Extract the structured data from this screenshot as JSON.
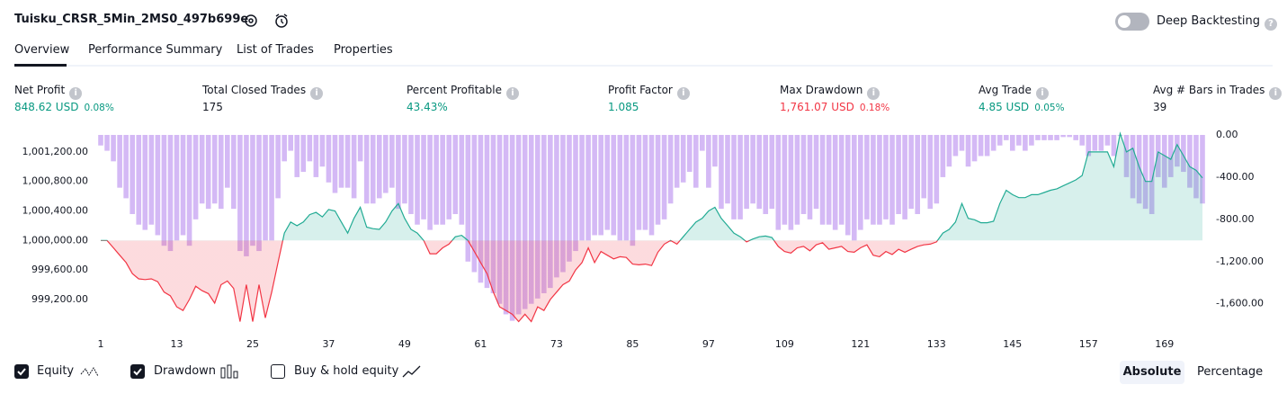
{
  "header": {
    "title": "Tuisku_CRSR_5Min_2MS0_497b699e",
    "toggle": "Deep Backtesting"
  },
  "tabs": [
    "Overview",
    "Performance Summary",
    "List of Trades",
    "Properties"
  ],
  "metrics": [
    {
      "label": "Net Profit",
      "value": "848.62 USD",
      "percent": "0.08%",
      "tone": "pos"
    },
    {
      "label": "Total Closed Trades",
      "value": "175",
      "tone": "neutral"
    },
    {
      "label": "Percent Profitable",
      "value": "43.43%",
      "tone": "pos"
    },
    {
      "label": "Profit Factor",
      "value": "1.085",
      "tone": "pos"
    },
    {
      "label": "Max Drawdown",
      "value": "1,761.07 USD",
      "percent": "0.18%",
      "tone": "neg"
    },
    {
      "label": "Avg Trade",
      "value": "4.85 USD",
      "percent": "0.05%",
      "tone": "pos"
    },
    {
      "label": "Avg # Bars in Trades",
      "value": "39",
      "tone": "neutral"
    }
  ],
  "chart_data": {
    "type": "line",
    "x": [
      1,
      2,
      3,
      4,
      5,
      6,
      7,
      8,
      9,
      10,
      11,
      12,
      13,
      14,
      15,
      16,
      17,
      18,
      19,
      20,
      21,
      22,
      23,
      24,
      25,
      26,
      27,
      28,
      29,
      30,
      31,
      32,
      33,
      34,
      35,
      36,
      37,
      38,
      39,
      40,
      41,
      42,
      43,
      44,
      45,
      46,
      47,
      48,
      49,
      50,
      51,
      52,
      53,
      54,
      55,
      56,
      57,
      58,
      59,
      60,
      61,
      62,
      63,
      64,
      65,
      66,
      67,
      68,
      69,
      70,
      71,
      72,
      73,
      74,
      75,
      76,
      77,
      78,
      79,
      80,
      81,
      82,
      83,
      84,
      85,
      86,
      87,
      88,
      89,
      90,
      91,
      92,
      93,
      94,
      95,
      96,
      97,
      98,
      99,
      100,
      101,
      102,
      103,
      104,
      105,
      106,
      107,
      108,
      109,
      110,
      111,
      112,
      113,
      114,
      115,
      116,
      117,
      118,
      119,
      120,
      121,
      122,
      123,
      124,
      125,
      126,
      127,
      128,
      129,
      130,
      131,
      132,
      133,
      134,
      135,
      136,
      137,
      138,
      139,
      140,
      141,
      142,
      143,
      144,
      145,
      146,
      147,
      148,
      149,
      150,
      151,
      152,
      153,
      154,
      155,
      156,
      157,
      158,
      159,
      160,
      161,
      162,
      163,
      164,
      165,
      166,
      167,
      168,
      169,
      170,
      171,
      172,
      173,
      174,
      175
    ],
    "xlim": [
      1,
      175
    ],
    "xticks": [
      1,
      13,
      25,
      37,
      49,
      61,
      73,
      85,
      97,
      109,
      121,
      133,
      145,
      157,
      169
    ],
    "ylim": [
      998870,
      1001430
    ],
    "yticks": [
      {
        "value": 999200,
        "label": "999,200.00"
      },
      {
        "value": 999600,
        "label": "999,600.00"
      },
      {
        "value": 1000000,
        "label": "1,000,000.00"
      },
      {
        "value": 1000400,
        "label": "1,000,400.00"
      },
      {
        "value": 1000800,
        "label": "1,000,800.00"
      },
      {
        "value": 1001200,
        "label": "1,001,200.00"
      }
    ],
    "y2lim": [
      -1790,
      0
    ],
    "y2ticks": [
      {
        "value": 0,
        "label": "0.00"
      },
      {
        "value": -400,
        "label": "-400.00"
      },
      {
        "value": -800,
        "label": "-800.00"
      },
      {
        "value": -1200,
        "label": "-1,200.00"
      },
      {
        "value": -1600,
        "label": "-1,600.00"
      }
    ],
    "series": [
      {
        "name": "Equity",
        "kind": "line",
        "color": "#22ab94",
        "color_below": "#f23645",
        "axis": "y",
        "values": [
          1000000,
          1000000,
          999900,
          999800,
          999700,
          999550,
          999480,
          999470,
          999480,
          999440,
          999300,
          999250,
          999100,
          999050,
          999200,
          999380,
          999320,
          999280,
          999150,
          999400,
          999450,
          999350,
          998900,
          999400,
          998900,
          999400,
          998950,
          999300,
          999700,
          1000100,
          1000250,
          1000200,
          1000250,
          1000350,
          1000380,
          1000320,
          1000420,
          1000400,
          1000250,
          1000100,
          1000300,
          1000450,
          1000180,
          1000160,
          1000150,
          1000250,
          1000400,
          1000500,
          1000300,
          1000150,
          1000100,
          1000000,
          999820,
          999820,
          999900,
          999950,
          1000050,
          1000070,
          1000000,
          999850,
          999700,
          999550,
          999300,
          999100,
          999050,
          999000,
          998900,
          999000,
          998900,
          999100,
          999050,
          999200,
          999300,
          999400,
          999450,
          999600,
          999700,
          999900,
          999700,
          999850,
          999800,
          999750,
          999780,
          999770,
          999680,
          999670,
          999680,
          999660,
          999840,
          999950,
          1000000,
          999950,
          1000050,
          1000150,
          1000250,
          1000300,
          1000400,
          1000450,
          1000300,
          1000200,
          1000100,
          1000050,
          999980,
          1000020,
          1000050,
          1000060,
          1000040,
          999920,
          999850,
          999830,
          999900,
          999920,
          999860,
          999940,
          999970,
          999880,
          999900,
          999920,
          999850,
          999840,
          999900,
          999940,
          999800,
          999780,
          999850,
          999810,
          999880,
          999840,
          999880,
          999920,
          999940,
          999950,
          999980,
          1000100,
          1000150,
          1000250,
          1000500,
          1000300,
          1000280,
          1000240,
          1000240,
          1000260,
          1000500,
          1000680,
          1000620,
          1000580,
          1000580,
          1000620,
          1000620,
          1000650,
          1000680,
          1000700,
          1000740,
          1000780,
          1000820,
          1000880,
          1001200,
          1001200,
          1001200,
          1001200,
          1001000,
          1001450,
          1001200,
          1001250,
          1001000,
          1000800,
          1000800,
          1001200,
          1001150,
          1001100,
          1001300,
          1001150,
          1001000,
          1000950,
          1000848.62
        ]
      },
      {
        "name": "Drawdown",
        "kind": "bar",
        "color": "#c9a7f3",
        "axis": "y2",
        "values": [
          -100,
          -150,
          -250,
          -500,
          -600,
          -750,
          -850,
          -900,
          -850,
          -950,
          -1050,
          -1100,
          -1000,
          -950,
          -1050,
          -800,
          -650,
          -700,
          -650,
          -700,
          -500,
          -700,
          -1100,
          -1150,
          -1050,
          -1100,
          -1000,
          -1000,
          -600,
          -250,
          -150,
          -400,
          -350,
          -250,
          -400,
          -300,
          -450,
          -550,
          -500,
          -500,
          -600,
          -250,
          -650,
          -650,
          -600,
          -550,
          -500,
          -700,
          -650,
          -750,
          -850,
          -800,
          -900,
          -850,
          -850,
          -800,
          -750,
          -850,
          -1200,
          -1300,
          -1400,
          -1450,
          -1500,
          -1600,
          -1700,
          -1761.07,
          -1700,
          -1650,
          -1600,
          -1550,
          -1500,
          -1450,
          -1350,
          -1300,
          -1200,
          -1100,
          -1000,
          -1000,
          -950,
          -950,
          -900,
          -950,
          -1000,
          -1000,
          -1050,
          -900,
          -900,
          -950,
          -850,
          -800,
          -650,
          -500,
          -450,
          -350,
          -500,
          -150,
          -500,
          -300,
          -700,
          -650,
          -800,
          -800,
          -700,
          -650,
          -700,
          -750,
          -700,
          -900,
          -850,
          -900,
          -850,
          -750,
          -800,
          -700,
          -850,
          -850,
          -900,
          -850,
          -950,
          -1000,
          -900,
          -800,
          -850,
          -850,
          -800,
          -850,
          -750,
          -800,
          -700,
          -750,
          -600,
          -700,
          -650,
          -400,
          -300,
          -200,
          -150,
          -300,
          -250,
          -200,
          -200,
          -150,
          -100,
          -50,
          -150,
          -100,
          -150,
          -100,
          -50,
          -50,
          -50,
          -50,
          -20,
          -20,
          -50,
          -100,
          -200,
          -150,
          -150,
          -100,
          -200,
          -10,
          -400,
          -600,
          -650,
          -700,
          -750,
          -400,
          -500,
          -400,
          -300,
          -350,
          -500,
          -600,
          -650
        ]
      }
    ]
  },
  "footer": {
    "buy_hold": "Buy & hold equity",
    "modes": [
      "Absolute",
      "Percentage"
    ]
  }
}
